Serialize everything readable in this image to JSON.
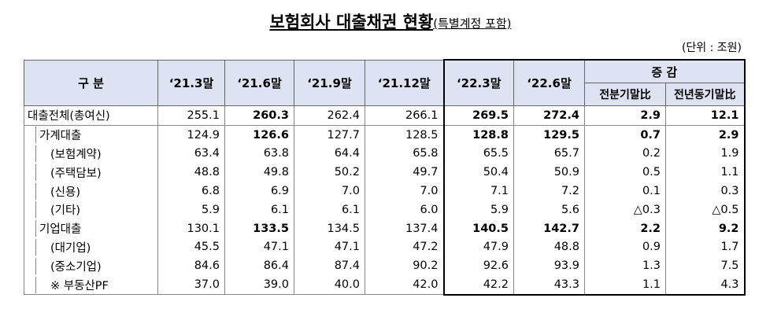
{
  "title": "보험회사 대출채권 현황",
  "subtitle": "(특별계정 포함)",
  "unit": "(단위 : 조원)",
  "header": {
    "category": "구 분",
    "columns": [
      "‘21.3말",
      "‘21.6말",
      "‘21.9말",
      "‘21.12말",
      "‘22.3말",
      "‘22.6말"
    ],
    "change": "증 감",
    "change_columns": [
      "전분기말比",
      "전년동기말比"
    ]
  },
  "table": {
    "rows": [
      [
        "대출전체(총여신)",
        "255.1",
        "260.3",
        "262.4",
        "266.1",
        "269.5",
        "272.4",
        "2.9",
        "12.1"
      ],
      [
        "가계대출",
        "124.9",
        "126.6",
        "127.7",
        "128.5",
        "128.8",
        "129.5",
        "0.7",
        "2.9"
      ],
      [
        "(보험계약)",
        "63.4",
        "63.8",
        "64.4",
        "65.8",
        "65.5",
        "65.7",
        "0.2",
        "1.9"
      ],
      [
        "(주택담보)",
        "48.8",
        "49.8",
        "50.2",
        "49.7",
        "50.4",
        "50.9",
        "0.5",
        "1.1"
      ],
      [
        "(신용)",
        "6.8",
        "6.9",
        "7.0",
        "7.0",
        "7.1",
        "7.2",
        "0.1",
        "0.3"
      ],
      [
        "(기타)",
        "5.9",
        "6.1",
        "6.1",
        "6.0",
        "5.9",
        "5.6",
        "△0.3",
        "△0.5"
      ],
      [
        "기업대출",
        "130.1",
        "133.5",
        "134.5",
        "137.4",
        "140.5",
        "142.7",
        "2.2",
        "9.2"
      ],
      [
        "(대기업)",
        "45.5",
        "47.1",
        "47.1",
        "47.2",
        "47.9",
        "48.8",
        "0.9",
        "1.7"
      ],
      [
        "(중소기업)",
        "84.6",
        "86.4",
        "87.4",
        "90.2",
        "92.6",
        "93.9",
        "1.3",
        "7.5"
      ],
      [
        "※ 부동산PF",
        "37.0",
        "39.0",
        "40.0",
        "42.0",
        "42.2",
        "43.3",
        "1.1",
        "4.3"
      ]
    ]
  }
}
